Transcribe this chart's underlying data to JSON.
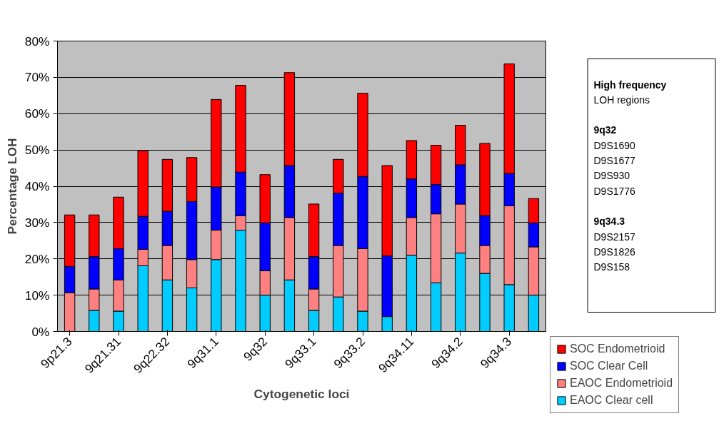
{
  "chart_data": {
    "type": "bar",
    "stacked": true,
    "xlabel": "Cytogenetic loci",
    "ylabel": "Percentage LOH",
    "categories": [
      "9p21.3",
      null,
      "9q21.31",
      null,
      "9q22.32",
      null,
      "9q31.1",
      null,
      "9q32",
      null,
      "9q33.1",
      null,
      "9q33.2",
      null,
      "9q34.11",
      null,
      "9q34.2",
      null,
      "9q34.3",
      null
    ],
    "series": [
      {
        "name": "EAOC Clear cell",
        "color": "#00ccff",
        "values": [
          0,
          5.8,
          5.6,
          18.1,
          14.2,
          12.0,
          19.8,
          27.9,
          10.0,
          14.2,
          5.8,
          9.5,
          5.6,
          4.1,
          21.0,
          13.4,
          21.6,
          16.0,
          12.9,
          10.0
        ]
      },
      {
        "name": "EAOC Endometrioid",
        "color": "#ff8080",
        "values": [
          10.7,
          5.9,
          8.6,
          4.5,
          9.5,
          7.8,
          8.1,
          4.0,
          6.7,
          17.2,
          5.9,
          14.2,
          17.2,
          0,
          10.4,
          19.0,
          13.5,
          7.7,
          21.7,
          13.3
        ]
      },
      {
        "name": "SOC Clear Cell",
        "color": "#0000ff",
        "values": [
          7.2,
          8.9,
          8.6,
          9.1,
          9.4,
          16.0,
          11.9,
          12.0,
          13.2,
          14.3,
          8.9,
          14.4,
          19.9,
          16.7,
          10.6,
          8.1,
          10.8,
          8.2,
          8.9,
          6.6
        ]
      },
      {
        "name": "SOC Endometrioid",
        "color": "#ff0000",
        "values": [
          14.2,
          11.5,
          14.2,
          18.1,
          14.3,
          12.1,
          24.1,
          23.9,
          13.3,
          25.6,
          14.5,
          9.3,
          22.9,
          24.9,
          10.6,
          10.8,
          10.9,
          19.9,
          30.2,
          6.7
        ]
      }
    ],
    "ylim": [
      0,
      80
    ],
    "yticks": [
      {
        "value": 0,
        "label": "0%"
      },
      {
        "value": 10,
        "label": "10%"
      },
      {
        "value": 20,
        "label": "20%"
      },
      {
        "value": 30,
        "label": "30%"
      },
      {
        "value": 40,
        "label": "40%"
      },
      {
        "value": 50,
        "label": "50%"
      },
      {
        "value": 60,
        "label": "60%"
      },
      {
        "value": 70,
        "label": "70%"
      },
      {
        "value": 80,
        "label": "80%"
      }
    ],
    "grid": "y",
    "legend": "bottom right",
    "annotations": [
      "High frequency\nLOH regions",
      "9q32\nD9S1690\nD9S1677\nD9S930\nD9S1776",
      "9q34.3\nD9S2157\nD9S1826\nD9S158"
    ]
  }
}
